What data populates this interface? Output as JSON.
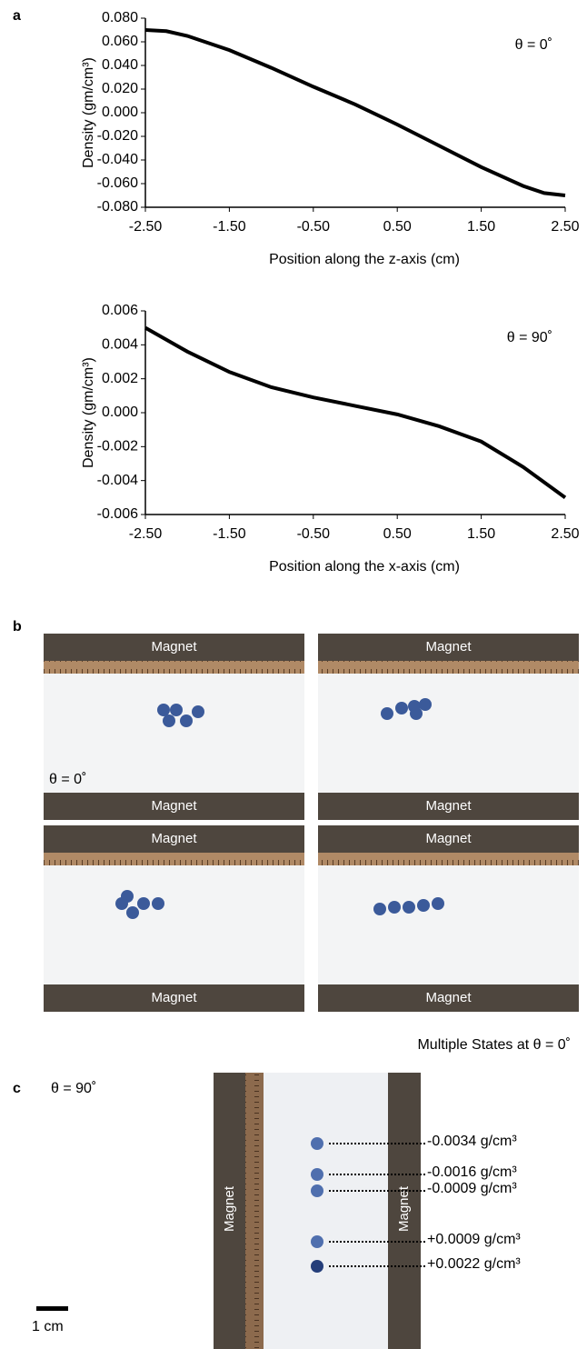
{
  "chart_data": [
    {
      "type": "line",
      "annotation": "θ = 0˚",
      "xlabel": "Position along the z-axis (cm)",
      "ylabel": "Density (gm/cm³)",
      "x": [
        -2.5,
        -2.25,
        -2,
        -1.5,
        -1,
        -0.5,
        0,
        0.5,
        1,
        1.5,
        2,
        2.25,
        2.5
      ],
      "values": [
        0.07,
        0.069,
        0.065,
        0.053,
        0.038,
        0.022,
        0.007,
        -0.01,
        -0.028,
        -0.046,
        -0.062,
        -0.068,
        -0.07
      ],
      "color": "#000000",
      "xlim": [
        -2.5,
        2.5
      ],
      "ylim": [
        -0.08,
        0.08
      ],
      "xticks": [
        {
          "value": -2.5,
          "label": "-2.50"
        },
        {
          "value": -1.5,
          "label": "-1.50"
        },
        {
          "value": -0.5,
          "label": "-0.50"
        },
        {
          "value": 0.5,
          "label": "0.50"
        },
        {
          "value": 1.5,
          "label": "1.50"
        },
        {
          "value": 2.5,
          "label": "2.50"
        }
      ],
      "yticks": [
        {
          "value": 0.08,
          "label": "0.080"
        },
        {
          "value": 0.06,
          "label": "0.060"
        },
        {
          "value": 0.04,
          "label": "0.040"
        },
        {
          "value": 0.02,
          "label": "0.020"
        },
        {
          "value": 0,
          "label": "0.000"
        },
        {
          "value": -0.02,
          "label": "-0.020"
        },
        {
          "value": -0.04,
          "label": "-0.040"
        },
        {
          "value": -0.06,
          "label": "-0.060"
        },
        {
          "value": -0.08,
          "label": "-0.080"
        }
      ]
    },
    {
      "type": "line",
      "annotation": "θ = 90˚",
      "xlabel": "Position along the x-axis (cm)",
      "ylabel": "Density (gm/cm³)",
      "x": [
        -2.5,
        -2,
        -1.5,
        -1,
        -0.5,
        0,
        0.5,
        1,
        1.5,
        2,
        2.5
      ],
      "values": [
        0.005,
        0.0036,
        0.0024,
        0.0015,
        0.0009,
        0.0004,
        -0.0001,
        -0.0008,
        -0.0017,
        -0.0032,
        -0.005
      ],
      "color": "#000000",
      "xlim": [
        -2.5,
        2.5
      ],
      "ylim": [
        -0.006,
        0.006
      ],
      "xticks": [
        {
          "value": -2.5,
          "label": "-2.50"
        },
        {
          "value": -1.5,
          "label": "-1.50"
        },
        {
          "value": -0.5,
          "label": "-0.50"
        },
        {
          "value": 0.5,
          "label": "0.50"
        },
        {
          "value": 1.5,
          "label": "1.50"
        },
        {
          "value": 2.5,
          "label": "2.50"
        }
      ],
      "yticks": [
        {
          "value": 0.006,
          "label": "0.006"
        },
        {
          "value": 0.004,
          "label": "0.004"
        },
        {
          "value": 0.002,
          "label": "0.002"
        },
        {
          "value": 0,
          "label": "0.000"
        },
        {
          "value": -0.002,
          "label": "-0.002"
        },
        {
          "value": -0.004,
          "label": "-0.004"
        },
        {
          "value": -0.006,
          "label": "-0.006"
        }
      ]
    }
  ],
  "panel_labels": [
    "a",
    "b",
    "c"
  ],
  "panel_b": {
    "magnet_label": "Magnet",
    "theta_label": "θ = 0˚",
    "caption": "Multiple States at θ = 0˚"
  },
  "panel_c": {
    "theta_label": "θ = 90˚",
    "magnet_label": "Magnet",
    "scale_bar": "1 cm",
    "density_labels": [
      "-0.0034 g/cm³",
      "-0.0016 g/cm³",
      "-0.0009 g/cm³",
      "+0.0009 g/cm³",
      "+0.0022 g/cm³"
    ]
  }
}
